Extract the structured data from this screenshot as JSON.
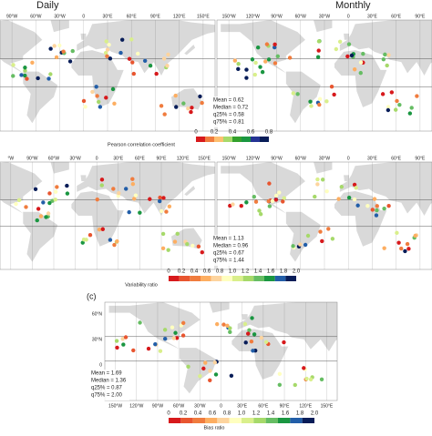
{
  "panels": [
    {
      "title": "Daily",
      "lon_labels": [
        "90°W",
        "60°W",
        "30°W",
        "0",
        "30°E",
        "60°E",
        "90°E",
        "120°E",
        "150°E"
      ],
      "stats": [
        "Mean = 0.62",
        "Median = 0.72",
        "q25% = 0.58",
        "q75% = 0.81"
      ]
    },
    {
      "title": "Monthly",
      "lon_labels": [
        "150°W",
        "120°W",
        "90°W",
        "60°W",
        "30°W",
        "0",
        "30°E",
        "60°E",
        "90°E"
      ]
    },
    {
      "lon_labels": [
        "°W",
        "90°W",
        "60°W",
        "30°W",
        "0",
        "30°E",
        "60°E",
        "90°E",
        "120°E",
        "150°E"
      ],
      "stats": [
        "Mean = 1.13",
        "Median = 0.96",
        "q25% = 0.67",
        "q75% = 1.44"
      ]
    },
    {
      "lon_labels": [
        "150°W",
        "120°W",
        "90°W",
        "60°W",
        "30°W",
        "0",
        "30°E",
        "60°E",
        "90°E"
      ]
    }
  ],
  "panel_c": {
    "label": "(c)",
    "lat_labels": [
      "60°N",
      "30°N",
      "0",
      "30°S"
    ],
    "lon_labels": [
      "150°W",
      "120°W",
      "90°W",
      "60°W",
      "30°W",
      "0",
      "30°E",
      "60°E",
      "90°E",
      "120°E",
      "150°E"
    ],
    "stats": [
      "Mean = 1.69",
      "Median = 1.36",
      "q25% = 0.87",
      "q75% = 2.00"
    ]
  },
  "colorbars": [
    {
      "label": "Pearson correlation coefficient",
      "ticks": [
        "0",
        "0.2",
        "0.4",
        "0.6",
        "0.8"
      ],
      "colors": [
        "#d7191c",
        "#f07c3e",
        "#fdbf6f",
        "#a6d96a",
        "#33a02c",
        "#1a9641",
        "#253494",
        "#081d58"
      ]
    },
    {
      "label": "Variability ratio",
      "ticks": [
        "0",
        "0.2",
        "0.4",
        "0.6",
        "0.8",
        "1.0",
        "1.2",
        "1.4",
        "1.6",
        "1.8",
        "2.0"
      ],
      "colors": [
        "#d7191c",
        "#e8552f",
        "#f07c3e",
        "#fdae61",
        "#fdd49e",
        "#ffffbf",
        "#d9ef8b",
        "#a6d96a",
        "#66bd63",
        "#1a9641",
        "#225ea8",
        "#081d58"
      ]
    },
    {
      "label": "Bias ratio",
      "ticks": [
        "0",
        "0.2",
        "0.4",
        "0.6",
        "0.8",
        "1.0",
        "1.2",
        "1.4",
        "1.6",
        "1.8",
        "2.0"
      ],
      "colors": [
        "#d7191c",
        "#e8552f",
        "#f07c3e",
        "#fdae61",
        "#fdd49e",
        "#ffffbf",
        "#d9ef8b",
        "#a6d96a",
        "#66bd63",
        "#1a9641",
        "#225ea8",
        "#081d58"
      ]
    }
  ]
}
